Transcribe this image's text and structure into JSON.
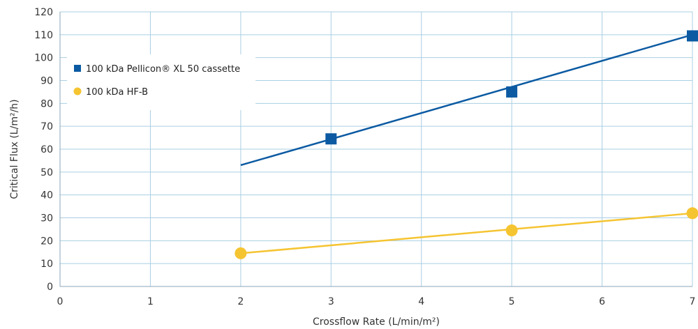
{
  "chart_data": {
    "type": "line",
    "title": "",
    "xlabel": "Crossflow Rate (L/min/m²)",
    "ylabel": "Critical Flux (L/m²/h)",
    "xlim": [
      0,
      7
    ],
    "ylim": [
      0,
      120
    ],
    "x_ticks": [
      0,
      1,
      2,
      3,
      4,
      5,
      6,
      7
    ],
    "y_ticks": [
      0,
      10,
      20,
      30,
      40,
      50,
      60,
      70,
      80,
      90,
      100,
      110,
      120
    ],
    "grid": true,
    "legend_position": "top-left",
    "series": [
      {
        "name": "100 kDa Pellicon® XL 50 cassette",
        "color": "#0b5aa2",
        "marker": "square",
        "points": [
          {
            "x": 3,
            "y": 64.5
          },
          {
            "x": 5,
            "y": 85
          },
          {
            "x": 7,
            "y": 109.5
          }
        ],
        "trendline": {
          "x": [
            2,
            7
          ],
          "y": [
            53,
            110
          ]
        }
      },
      {
        "name": "100 kDa HF-B",
        "color": "#f5c431",
        "marker": "circle",
        "points": [
          {
            "x": 2,
            "y": 14.5
          },
          {
            "x": 5,
            "y": 24.5
          },
          {
            "x": 7,
            "y": 32
          }
        ],
        "trendline": {
          "x": [
            2,
            7
          ],
          "y": [
            14.5,
            32
          ]
        }
      }
    ],
    "colors": {
      "grid": "#a9cfe3",
      "axis": "#8aa6b8"
    }
  }
}
